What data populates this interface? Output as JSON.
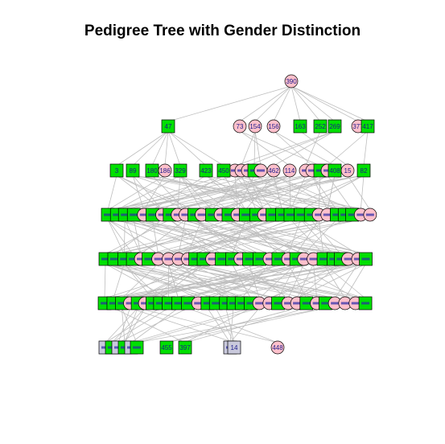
{
  "title": "Pedigree Tree with Gender Distinction",
  "colors": {
    "male": "#00e000",
    "female": "#ffc0cb",
    "other": "#c9c9dc",
    "edge": "#bebebe",
    "label": "#1a1a8c",
    "border": "#000000"
  },
  "generations": [
    {
      "level": 0,
      "nodes": [
        {
          "id": "390",
          "sex": "female"
        }
      ]
    },
    {
      "level": 1,
      "nodes": [
        {
          "id": "47",
          "sex": "male"
        },
        {
          "id": "73",
          "sex": "female"
        },
        {
          "id": "154",
          "sex": "female"
        },
        {
          "id": "156",
          "sex": "female"
        },
        {
          "id": "163",
          "sex": "male"
        },
        {
          "id": "252",
          "sex": "male"
        },
        {
          "id": "269",
          "sex": "male"
        },
        {
          "id": "377",
          "sex": "female"
        },
        {
          "id": "417",
          "sex": "male"
        }
      ]
    },
    {
      "level": 2,
      "nodes": [
        {
          "id": "3",
          "sex": "male"
        },
        {
          "id": "89",
          "sex": "male"
        },
        {
          "id": "180",
          "sex": "male"
        },
        {
          "id": "186",
          "sex": "female"
        },
        {
          "id": "329",
          "sex": "male"
        },
        {
          "id": "423",
          "sex": "male"
        },
        {
          "id": "450",
          "sex": "male"
        },
        {
          "id": "462",
          "sex": "female"
        },
        {
          "id": "114",
          "sex": "female"
        },
        {
          "id": "408",
          "sex": "male"
        },
        {
          "id": "15",
          "sex": "female"
        },
        {
          "id": "82",
          "sex": "male"
        }
      ]
    },
    {
      "level": 3,
      "nodes": []
    },
    {
      "level": 4,
      "nodes": []
    },
    {
      "level": 5,
      "nodes": []
    },
    {
      "level": 6,
      "nodes": [
        {
          "id": "455",
          "sex": "male"
        },
        {
          "id": "397",
          "sex": "male"
        },
        {
          "id": "14",
          "sex": "other"
        },
        {
          "id": "448",
          "sex": "female"
        }
      ]
    }
  ]
}
